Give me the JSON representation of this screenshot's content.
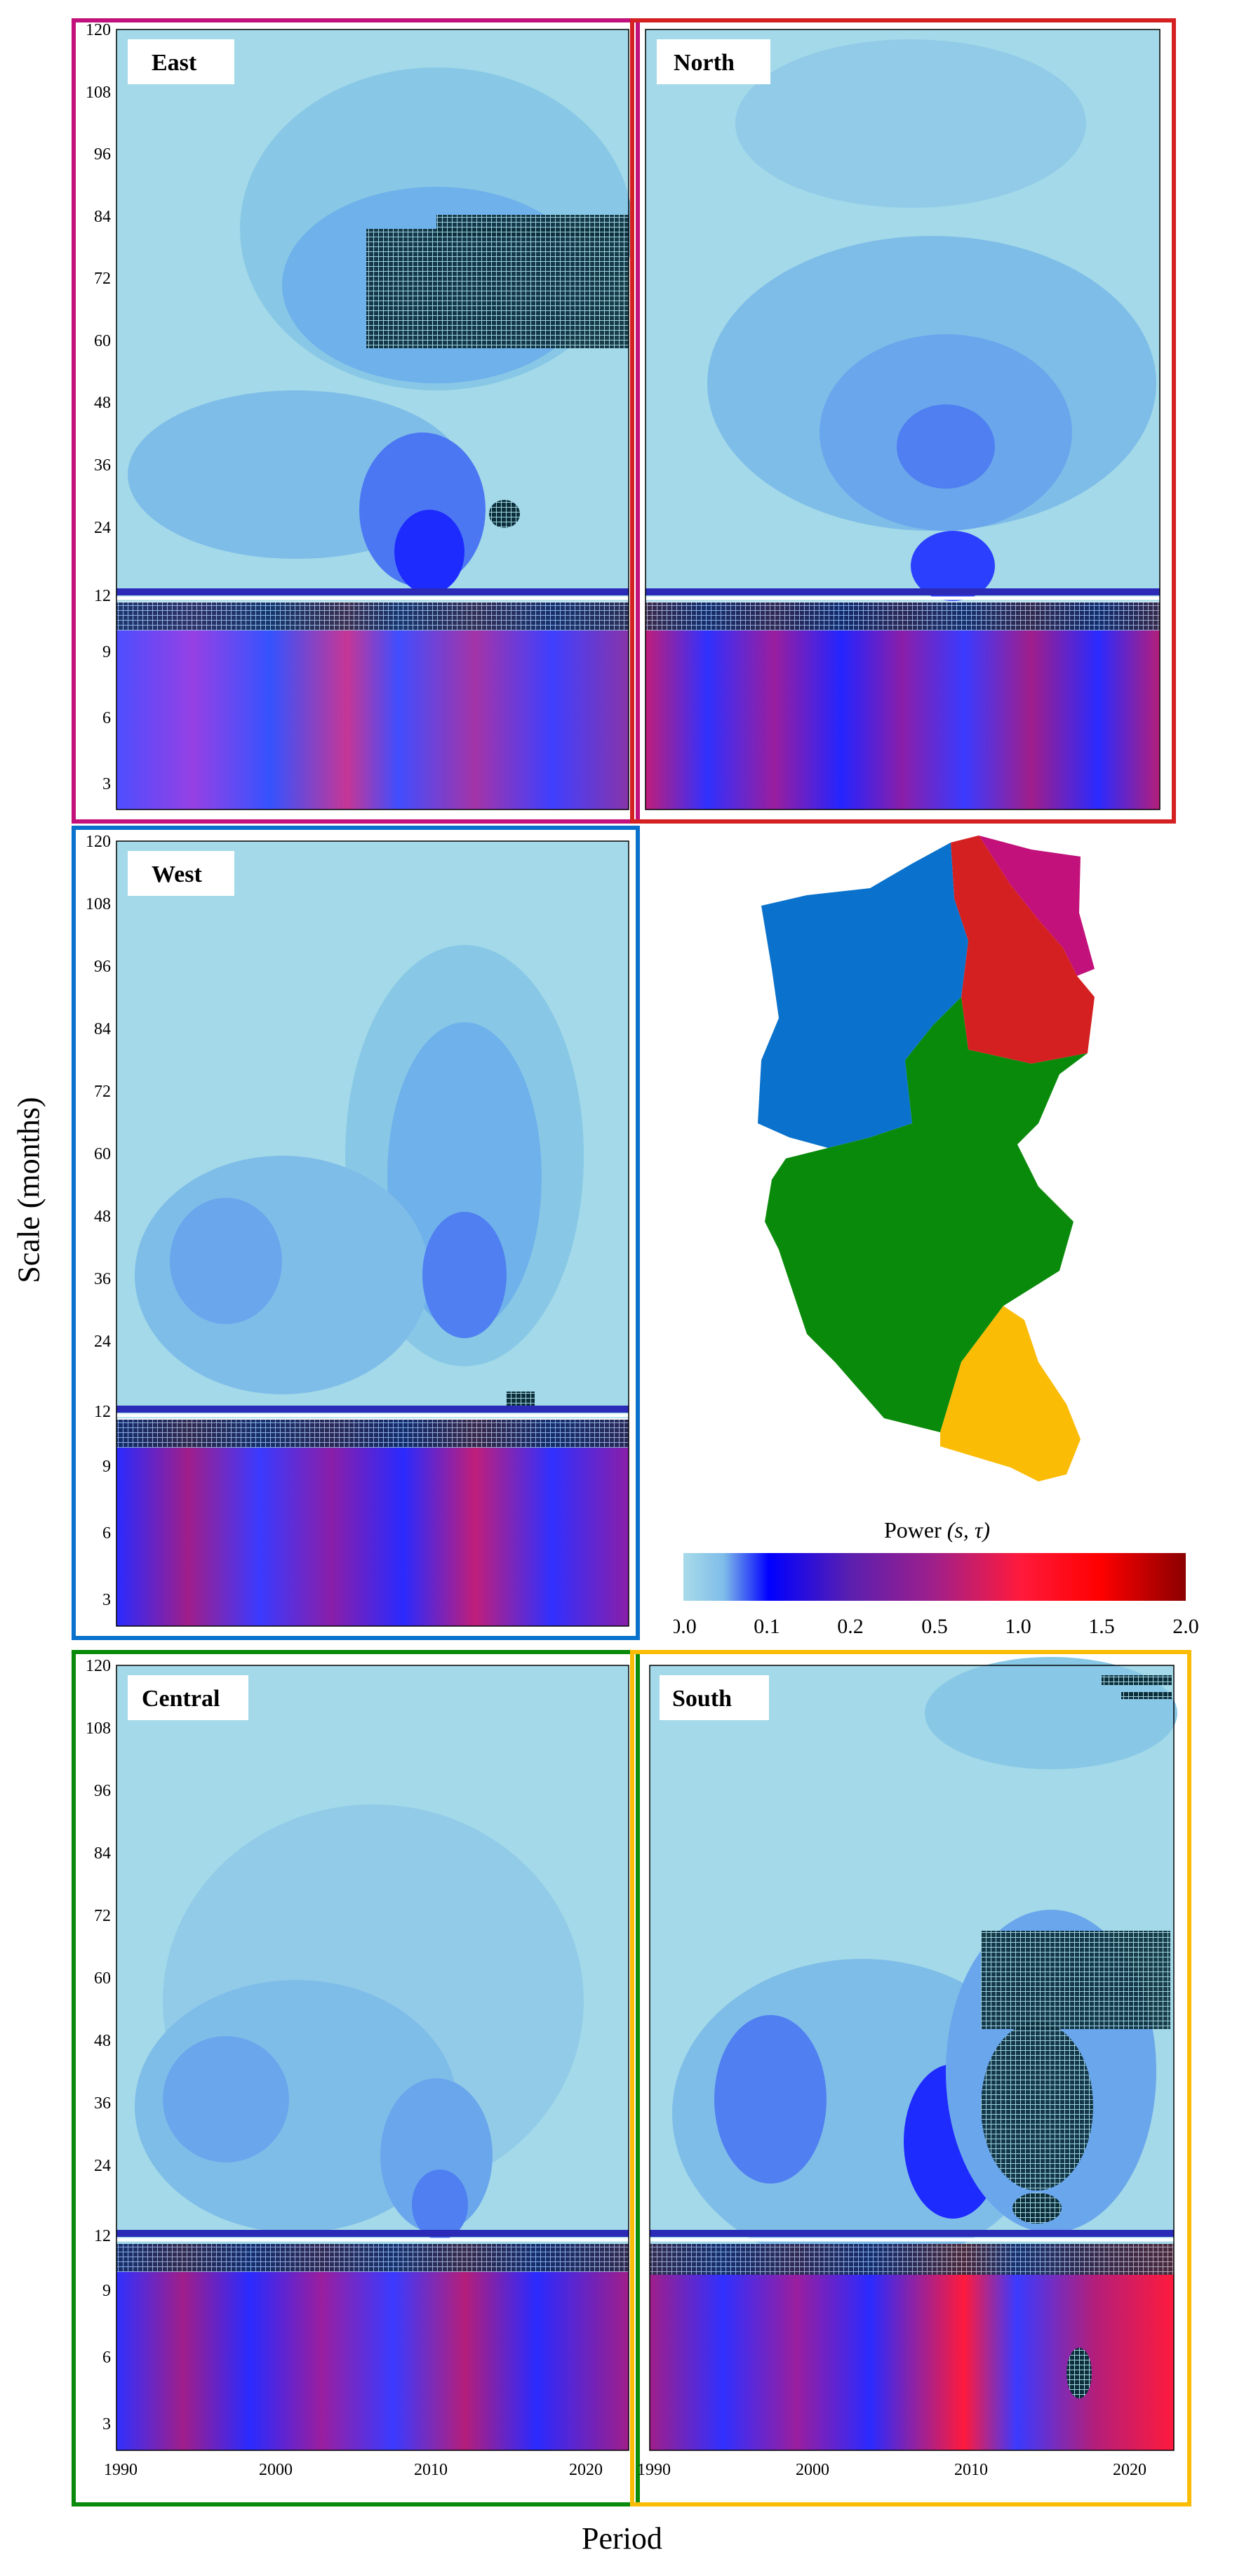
{
  "figure": {
    "y_axis_label": "Scale (months)",
    "x_axis_label": "Period"
  },
  "colorbar": {
    "title": "Power (s,τ)",
    "title_symbols": "(s, τ)",
    "title_word": "Power",
    "ticks": [
      "0.0",
      "0.1",
      "0.2",
      "0.5",
      "1.0",
      "1.5",
      "2.0"
    ],
    "colors": [
      "#a8dbe9",
      "#0000ff",
      "#5a1fb0",
      "#a01f8a",
      "#ff1a3c",
      "#ff0000",
      "#8b0000"
    ]
  },
  "region_colors": {
    "East": "#c2117a",
    "North": "#d42020",
    "West": "#0a72cc",
    "Central": "#0a8a0a",
    "South": "#fbbc05"
  },
  "chart_data": [
    {
      "type": "heatmap",
      "title": "East",
      "x": {
        "range": [
          1990,
          2023
        ],
        "ticks": [
          "1990",
          "2000",
          "2010",
          "2020"
        ]
      },
      "y_upper_ticks": [
        "120",
        "108",
        "96",
        "84",
        "72",
        "60",
        "48",
        "36",
        "24",
        "12"
      ],
      "y_lower_ticks": [
        "12",
        "9",
        "6",
        "3"
      ],
      "xlabel": "Period",
      "ylabel": "Scale (months)",
      "significant_regions": [
        {
          "x": [
            2006,
            2023
          ],
          "y": [
            58,
            84
          ]
        },
        {
          "x": [
            2013,
            2015
          ],
          "y": [
            25,
            29
          ]
        },
        {
          "x": [
            1990,
            2023
          ],
          "y": [
            10,
            12
          ]
        }
      ]
    },
    {
      "type": "heatmap",
      "title": "North",
      "x": {
        "range": [
          1990,
          2023
        ],
        "ticks": [
          "1990",
          "2000",
          "2010",
          "2020"
        ]
      },
      "y_upper_ticks": [
        "120",
        "108",
        "96",
        "84",
        "72",
        "60",
        "48",
        "36",
        "24",
        "12"
      ],
      "y_lower_ticks": [
        "12",
        "9",
        "6",
        "3"
      ],
      "significant_regions": [
        {
          "x": [
            1990,
            2023
          ],
          "y": [
            10,
            12
          ]
        }
      ]
    },
    {
      "type": "heatmap",
      "title": "West",
      "x": {
        "range": [
          1990,
          2023
        ],
        "ticks": [
          "1990",
          "2000",
          "2010",
          "2020"
        ]
      },
      "y_upper_ticks": [
        "120",
        "108",
        "96",
        "84",
        "72",
        "60",
        "48",
        "36",
        "24",
        "12"
      ],
      "y_lower_ticks": [
        "12",
        "9",
        "6",
        "3"
      ],
      "significant_regions": [
        {
          "x": [
            2014,
            2017
          ],
          "y": [
            12,
            16
          ]
        },
        {
          "x": [
            1990,
            2023
          ],
          "y": [
            10,
            12
          ]
        }
      ]
    },
    {
      "type": "heatmap",
      "title": "Central",
      "x": {
        "range": [
          1990,
          2023
        ],
        "ticks": [
          "1990",
          "2000",
          "2010",
          "2020"
        ]
      },
      "y_upper_ticks": [
        "120",
        "108",
        "96",
        "84",
        "72",
        "60",
        "48",
        "36",
        "24",
        "12"
      ],
      "y_lower_ticks": [
        "12",
        "9",
        "6",
        "3"
      ],
      "significant_regions": [
        {
          "x": [
            1990,
            2023
          ],
          "y": [
            10,
            12
          ]
        }
      ]
    },
    {
      "type": "heatmap",
      "title": "South",
      "x": {
        "range": [
          1990,
          2023
        ],
        "ticks": [
          "1990",
          "2000",
          "2010",
          "2020"
        ]
      },
      "y_upper_ticks": [
        "120",
        "108",
        "96",
        "84",
        "72",
        "60",
        "48",
        "36",
        "24",
        "12"
      ],
      "y_lower_ticks": [
        "12",
        "9",
        "6",
        "3"
      ],
      "significant_regions": [
        {
          "x": [
            2017,
            2023
          ],
          "y": [
            114,
            120
          ]
        },
        {
          "x": [
            2012,
            2023
          ],
          "y": [
            58,
            70
          ]
        },
        {
          "x": [
            2012,
            2019
          ],
          "y": [
            22,
            58
          ]
        },
        {
          "x": [
            2013,
            2017
          ],
          "y": [
            16,
            21
          ]
        },
        {
          "x": [
            1990,
            2023
          ],
          "y": [
            10,
            12
          ]
        }
      ]
    }
  ]
}
